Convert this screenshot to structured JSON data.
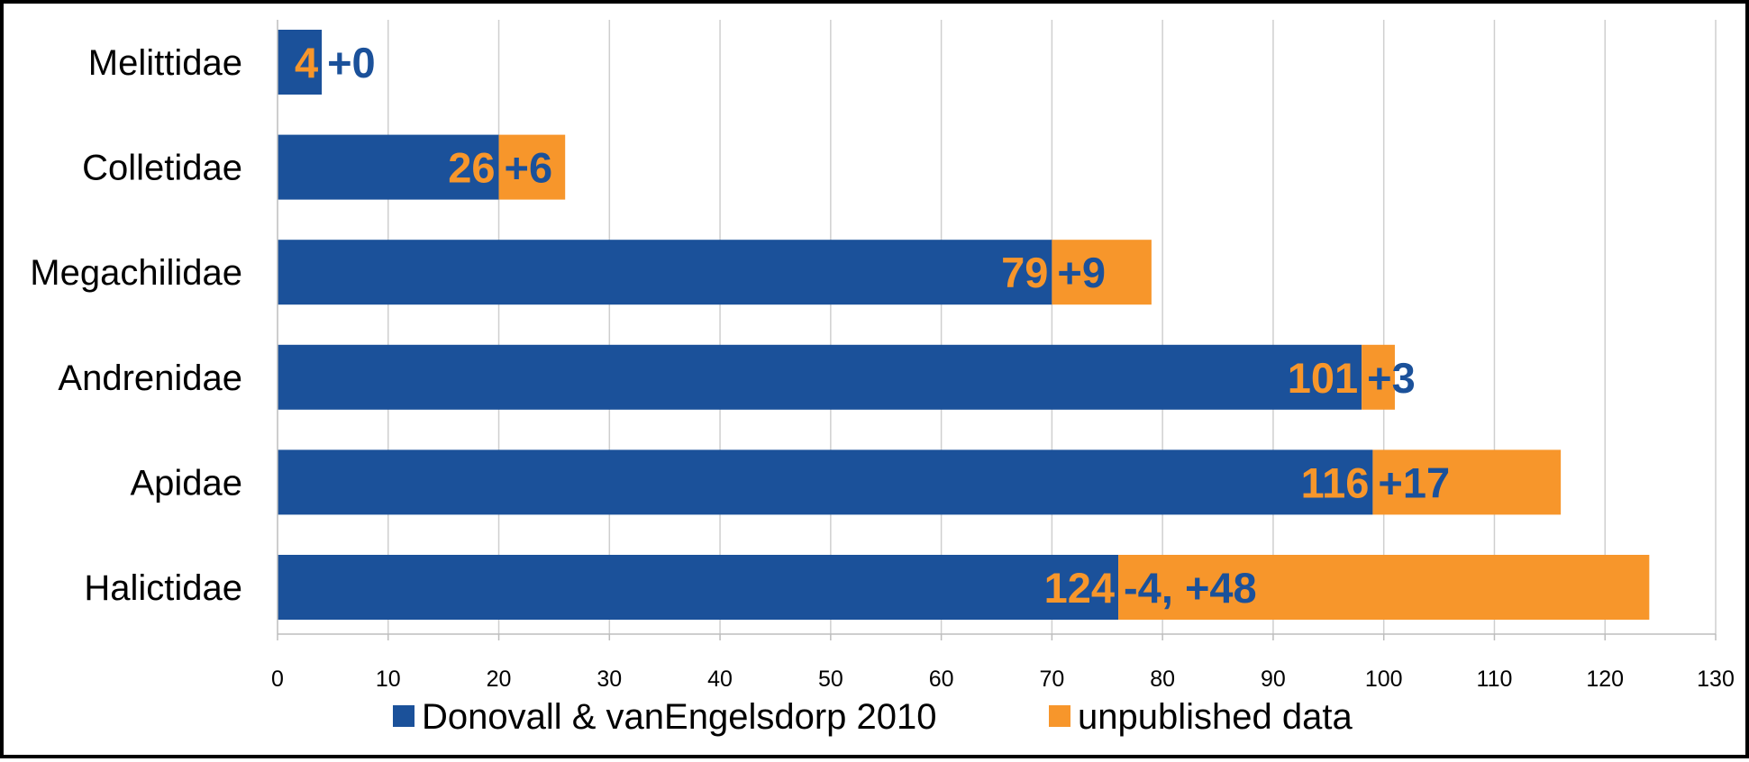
{
  "chart_data": {
    "type": "bar",
    "orientation": "horizontal",
    "stacked": true,
    "categories": [
      "Melittidae",
      "Colletidae",
      "Megachilidae",
      "Andrenidae",
      "Apidae",
      "Halictidae"
    ],
    "series": [
      {
        "name": "Donovall & vanEngelsdorp 2010",
        "color": "#1b519a",
        "values": [
          4,
          20,
          70,
          98,
          99,
          76
        ]
      },
      {
        "name": "unpublished data",
        "color": "#f7962b",
        "values": [
          0,
          6,
          9,
          3,
          17,
          48
        ]
      }
    ],
    "total_labels": [
      "4",
      "26",
      "79",
      "101",
      "116",
      "124"
    ],
    "change_labels": [
      "+0",
      "+6",
      "+9",
      "+3",
      "+17",
      "-4, +48"
    ],
    "total_label_color": "#f7962b",
    "change_label_color": "#1b519a",
    "xlim": [
      0,
      130
    ],
    "xticks": [
      0,
      10,
      20,
      30,
      40,
      50,
      60,
      70,
      80,
      90,
      100,
      110,
      120,
      130
    ],
    "grid": true,
    "legend_position": "bottom"
  }
}
